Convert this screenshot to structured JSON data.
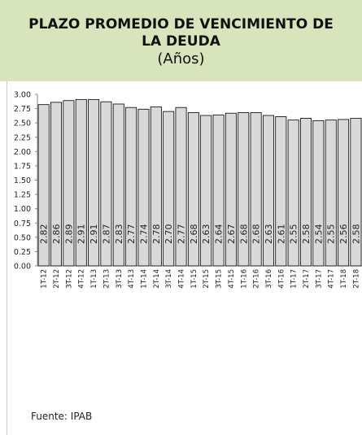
{
  "chart_data": {
    "type": "bar",
    "title": "PLAZO PROMEDIO DE VENCIMIENTO DE LA DEUDA",
    "subtitle": "(Años)",
    "categories": [
      "1T-12",
      "2T-12",
      "3T-12",
      "4T-12",
      "1T-13",
      "2T-13",
      "3T-13",
      "4T-13",
      "1T-14",
      "2T-14",
      "3T-14",
      "4T-14",
      "1T-15",
      "2T-15",
      "3T-15",
      "4T-15",
      "1T-16",
      "2T-16",
      "3T-16",
      "4T-16",
      "1T-17",
      "2T-17",
      "3T-17",
      "4T-17",
      "1T-18",
      "2T-18"
    ],
    "values": [
      2.82,
      2.86,
      2.89,
      2.91,
      2.91,
      2.87,
      2.83,
      2.77,
      2.74,
      2.78,
      2.7,
      2.77,
      2.68,
      2.63,
      2.64,
      2.67,
      2.68,
      2.68,
      2.63,
      2.61,
      2.55,
      2.58,
      2.54,
      2.55,
      2.56,
      2.58
    ],
    "value_labels": [
      "2.82",
      "2.86",
      "2.89",
      "2.91",
      "2.91",
      "2.87",
      "2.83",
      "2.77",
      "2.74",
      "2.78",
      "2.70",
      "2.77",
      "2.68",
      "2.63",
      "2.64",
      "2.67",
      "2.68",
      "2.68",
      "2.63",
      "2.61",
      "2.55",
      "2.58",
      "2.54",
      "2.55",
      "2.56",
      "2.58"
    ],
    "color": "#d9d9d9",
    "ylim": [
      0,
      3
    ],
    "yticks": [
      {
        "value": 0,
        "label": "0.00"
      },
      {
        "value": 0.25,
        "label": "0.25"
      },
      {
        "value": 0.5,
        "label": "0.50"
      },
      {
        "value": 0.75,
        "label": "0.75"
      },
      {
        "value": 1,
        "label": "1.00"
      },
      {
        "value": 1.25,
        "label": "1.25"
      },
      {
        "value": 1.5,
        "label": "1.50"
      },
      {
        "value": 1.75,
        "label": "1.75"
      },
      {
        "value": 2,
        "label": "2.00"
      },
      {
        "value": 2.25,
        "label": "2.25"
      },
      {
        "value": 2.5,
        "label": "2.50"
      },
      {
        "value": 2.75,
        "label": "2.75"
      },
      {
        "value": 3,
        "label": "3.00"
      }
    ],
    "grid": false,
    "source": "Fuente: IPAB"
  }
}
